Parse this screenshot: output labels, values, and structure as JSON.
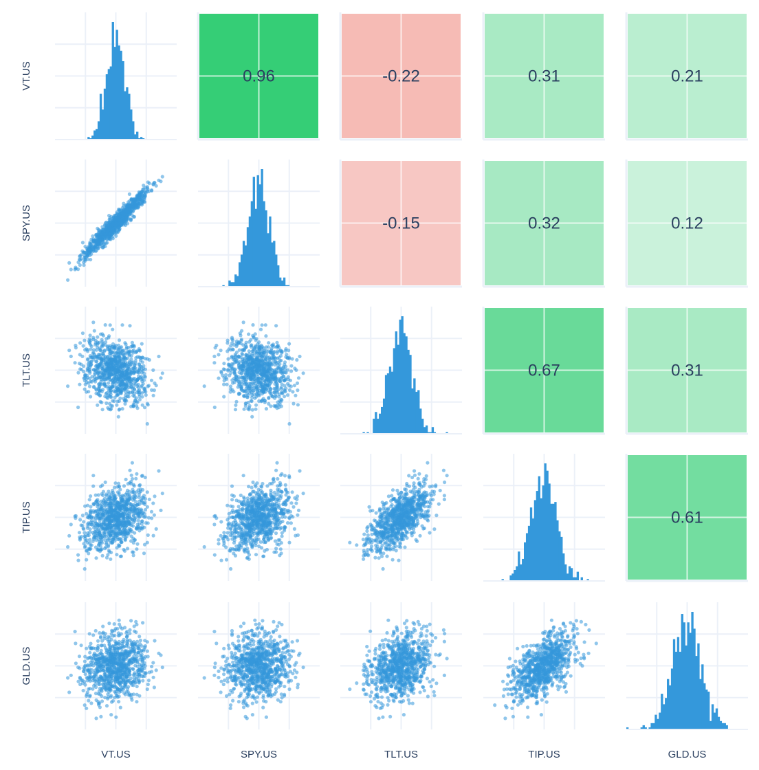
{
  "chart_data": {
    "type": "scatter-matrix",
    "variables": [
      "VT.US",
      "SPY.US",
      "TLT.US",
      "TIP.US",
      "GLD.US"
    ],
    "diagonal": "histogram",
    "lower": "scatter",
    "upper": "correlation-heatmap",
    "correlations": [
      [
        1.0,
        0.96,
        -0.22,
        0.31,
        0.21
      ],
      [
        0.96,
        1.0,
        -0.15,
        0.32,
        0.12
      ],
      [
        -0.22,
        -0.15,
        1.0,
        0.67,
        0.31
      ],
      [
        0.31,
        0.32,
        0.67,
        1.0,
        0.61
      ],
      [
        0.21,
        0.12,
        0.31,
        0.61,
        1.0
      ]
    ],
    "correlation_labels": [
      [
        "",
        "0.96",
        "-0.22",
        "0.31",
        "0.21"
      ],
      [
        "",
        "",
        "-0.15",
        "0.32",
        "0.12"
      ],
      [
        "",
        "",
        "",
        "0.67",
        "0.31"
      ],
      [
        "",
        "",
        "",
        "",
        "0.61"
      ],
      [
        "",
        "",
        "",
        "",
        ""
      ]
    ],
    "colors": {
      "marker": "#3498db",
      "positive": "#2ecc71",
      "negative": "#f5b7b1",
      "grid": "#ebf0f8",
      "text": "#2a3f5f"
    },
    "grid": true,
    "legend": "none"
  }
}
